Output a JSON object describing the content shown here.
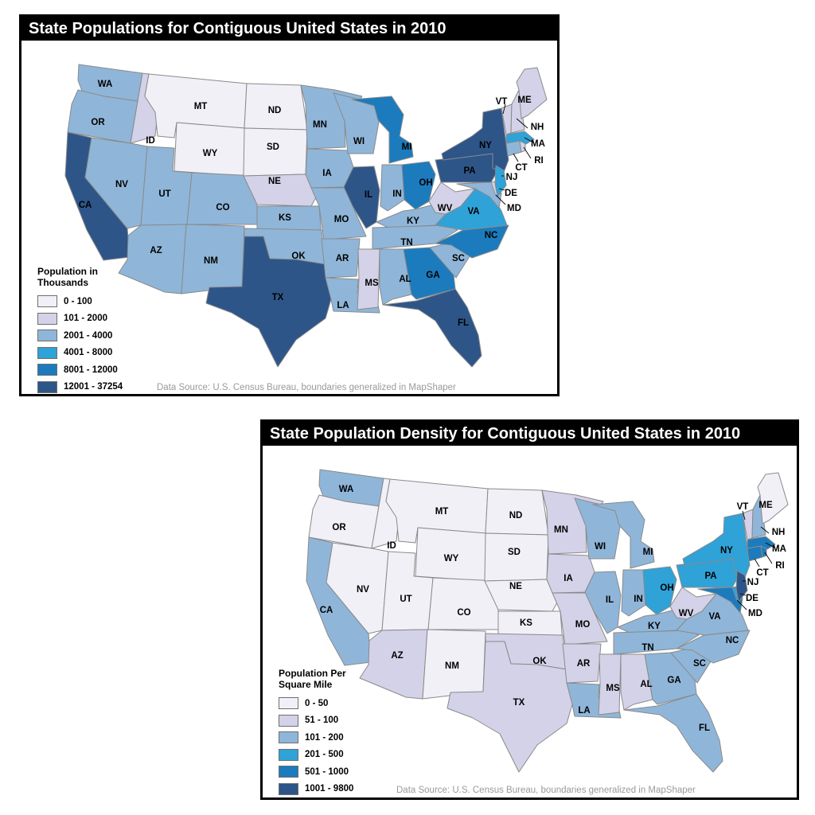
{
  "maps": [
    {
      "title": "State Populations for Contiguous United States in 2010",
      "legend_title": [
        "Population in",
        "Thousands"
      ],
      "legend": [
        {
          "label": "0 - 100",
          "color": "#f2f0f7"
        },
        {
          "label": "101 - 2000",
          "color": "#d3d2e8"
        },
        {
          "label": "2001 - 4000",
          "color": "#8fb6d9"
        },
        {
          "label": "4001 - 8000",
          "color": "#2fa2d8"
        },
        {
          "label": "8001 - 12000",
          "color": "#1b7bbd"
        },
        {
          "label": "12001 - 37254",
          "color": "#2d5588"
        }
      ],
      "source": "Data Source: U.S. Census Bureau, boundaries generalized in MapShaper",
      "classes": {
        "WA": 2,
        "OR": 2,
        "CA": 5,
        "ID": 1,
        "NV": 2,
        "MT": 0,
        "WY": 0,
        "UT": 2,
        "AZ": 2,
        "CO": 2,
        "NM": 2,
        "ND": 0,
        "SD": 0,
        "NE": 1,
        "KS": 2,
        "OK": 2,
        "TX": 5,
        "MN": 2,
        "IA": 2,
        "MO": 2,
        "AR": 2,
        "LA": 2,
        "WI": 2,
        "IL": 5,
        "MI": 4,
        "IN": 2,
        "OH": 4,
        "KY": 2,
        "TN": 2,
        "MS": 1,
        "AL": 2,
        "GA": 4,
        "FL": 5,
        "SC": 2,
        "NC": 4,
        "VA": 3,
        "WV": 1,
        "PA": 5,
        "NY": 5,
        "MD": 2,
        "DE": 1,
        "NJ": 3,
        "CT": 2,
        "RI": 1,
        "MA": 3,
        "VT": 1,
        "NH": 1,
        "ME": 1
      }
    },
    {
      "title": "State Population Density for Contiguous United States in 2010",
      "legend_title": [
        "Population Per",
        "Square Mile"
      ],
      "legend": [
        {
          "label": "0 - 50",
          "color": "#f2f0f7"
        },
        {
          "label": "51 - 100",
          "color": "#d3d2e8"
        },
        {
          "label": "101 - 200",
          "color": "#8fb6d9"
        },
        {
          "label": "201 - 500",
          "color": "#2fa2d8"
        },
        {
          "label": "501 - 1000",
          "color": "#1b7bbd"
        },
        {
          "label": "1001 - 9800",
          "color": "#2d5588"
        }
      ],
      "source": "Data Source: U.S. Census Bureau, boundaries generalized in MapShaper",
      "classes": {
        "WA": 2,
        "OR": 0,
        "CA": 2,
        "ID": 0,
        "NV": 0,
        "MT": 0,
        "WY": 0,
        "UT": 0,
        "AZ": 1,
        "CO": 0,
        "NM": 0,
        "ND": 0,
        "SD": 0,
        "NE": 0,
        "KS": 0,
        "OK": 1,
        "TX": 1,
        "MN": 1,
        "IA": 1,
        "MO": 1,
        "AR": 1,
        "LA": 2,
        "WI": 2,
        "IL": 2,
        "MI": 2,
        "IN": 2,
        "OH": 3,
        "KY": 2,
        "TN": 2,
        "MS": 1,
        "AL": 1,
        "GA": 2,
        "FL": 2,
        "SC": 2,
        "NC": 2,
        "VA": 2,
        "WV": 1,
        "PA": 3,
        "NY": 3,
        "MD": 4,
        "DE": 3,
        "NJ": 5,
        "CT": 4,
        "RI": 4,
        "MA": 4,
        "VT": 1,
        "NH": 2,
        "ME": 0
      }
    }
  ],
  "state_labels": {
    "WA": "WA",
    "OR": "OR",
    "CA": "CA",
    "ID": "ID",
    "NV": "NV",
    "MT": "MT",
    "WY": "WY",
    "UT": "UT",
    "AZ": "AZ",
    "CO": "CO",
    "NM": "NM",
    "ND": "ND",
    "SD": "SD",
    "NE": "NE",
    "KS": "KS",
    "OK": "OK",
    "TX": "TX",
    "MN": "MN",
    "IA": "IA",
    "MO": "MO",
    "AR": "AR",
    "LA": "LA",
    "WI": "WI",
    "IL": "IL",
    "MI": "MI",
    "IN": "IN",
    "OH": "OH",
    "KY": "KY",
    "TN": "TN",
    "MS": "MS",
    "AL": "AL",
    "GA": "GA",
    "FL": "FL",
    "SC": "SC",
    "NC": "NC",
    "VA": "VA",
    "WV": "WV",
    "PA": "PA",
    "NY": "NY",
    "MD": "MD",
    "DE": "DE",
    "NJ": "NJ",
    "CT": "CT",
    "RI": "RI",
    "MA": "MA",
    "VT": "VT",
    "NH": "NH",
    "ME": "ME"
  }
}
